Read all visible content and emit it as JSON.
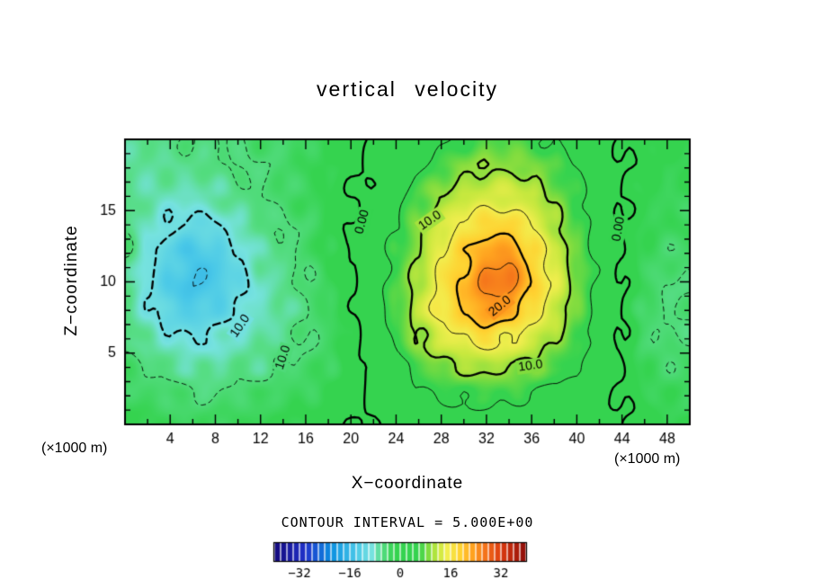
{
  "chart_data": {
    "type": "heatmap",
    "title": "vertical velocity",
    "xlabel": "X−coordinate",
    "ylabel": "Z−coordinate",
    "unit_label_left": "(×1000 m)",
    "unit_label_right": "(×1000 m)",
    "contour_interval_text": "CONTOUR INTERVAL = 5.000E+00",
    "contour_interval": 5.0,
    "xlim": [
      0,
      50
    ],
    "zlim": [
      0,
      20
    ],
    "x_ticks": [
      4,
      8,
      12,
      16,
      20,
      24,
      28,
      32,
      36,
      40,
      44,
      48
    ],
    "x_tick_minor_step": 2,
    "z_ticks": [
      5,
      10,
      15
    ],
    "z_tick_minor_step": 1,
    "grid_x": [
      0,
      2,
      4,
      6,
      8,
      10,
      12,
      14,
      16,
      18,
      20,
      22,
      24,
      26,
      28,
      30,
      32,
      34,
      36,
      38,
      40,
      42,
      44,
      46,
      48,
      50
    ],
    "grid_z": [
      0,
      2,
      4,
      6,
      8,
      10,
      12,
      14,
      16,
      18,
      20
    ],
    "values": [
      [
        -2,
        -2,
        -3,
        -3,
        -3,
        -3,
        -2,
        -2,
        -2,
        -1,
        0,
        0,
        1,
        2,
        3,
        3,
        3,
        3,
        3,
        2,
        2,
        1,
        0,
        -1,
        -2,
        -2
      ],
      [
        -3,
        -4,
        -4,
        -5,
        -5,
        -4,
        -4,
        -3,
        -3,
        -2,
        -1,
        0,
        2,
        4,
        5,
        6,
        6,
        6,
        5,
        4,
        3,
        1,
        0,
        -2,
        -3,
        -3
      ],
      [
        -4,
        -5,
        -6,
        -7,
        -7,
        -6,
        -6,
        -5,
        -4,
        -3,
        -1,
        1,
        4,
        7,
        9,
        10,
        11,
        10,
        9,
        7,
        5,
        2,
        0,
        -3,
        -4,
        -4
      ],
      [
        -5,
        -7,
        -9,
        -10,
        -9,
        -8,
        -7,
        -6,
        -5,
        -4,
        -1,
        2,
        6,
        10,
        13,
        15,
        17,
        15,
        13,
        10,
        7,
        3,
        0,
        -4,
        -5,
        -5
      ],
      [
        -6,
        -9,
        -12,
        -13,
        -12,
        -10,
        -8,
        -7,
        -5,
        -3,
        -1,
        3,
        7,
        12,
        16,
        20,
        24,
        22,
        17,
        13,
        8,
        4,
        0,
        -4,
        -5,
        -5
      ],
      [
        -6,
        -10,
        -13,
        -15,
        -14,
        -11,
        -8,
        -6,
        -5,
        -3,
        0,
        3,
        7,
        11,
        16,
        21,
        26,
        27,
        20,
        14,
        9,
        4,
        0,
        -3,
        -5,
        -5
      ],
      [
        -5,
        -9,
        -12,
        -14,
        -13,
        -10,
        -7,
        -6,
        -4,
        -2,
        0,
        2,
        6,
        10,
        15,
        19,
        23,
        24,
        18,
        13,
        8,
        4,
        0,
        -3,
        -4,
        -4
      ],
      [
        -5,
        -8,
        -10,
        -11,
        -10,
        -8,
        -6,
        -5,
        -4,
        -2,
        0,
        2,
        5,
        9,
        13,
        16,
        18,
        18,
        15,
        11,
        7,
        3,
        0,
        -2,
        -3,
        -3
      ],
      [
        -6,
        -7,
        -8,
        -8,
        -7,
        -6,
        -5,
        -4,
        -3,
        -2,
        0,
        1,
        4,
        7,
        10,
        12,
        13,
        13,
        12,
        9,
        6,
        3,
        0,
        -2,
        -3,
        -3
      ],
      [
        -7,
        -7,
        -6,
        -6,
        -6,
        -5,
        -5,
        -4,
        -3,
        -2,
        -1,
        1,
        3,
        5,
        7,
        9,
        10,
        10,
        9,
        7,
        5,
        2,
        0,
        -1,
        -2,
        -2
      ],
      [
        -6,
        -6,
        -6,
        -5,
        -5,
        -5,
        -4,
        -4,
        -3,
        -2,
        -1,
        0,
        2,
        3,
        4,
        6,
        7,
        7,
        6,
        5,
        4,
        2,
        0,
        -1,
        -2,
        -2
      ]
    ],
    "contour_levels": [
      -15,
      -10,
      -5,
      0,
      5,
      10,
      15,
      20,
      25
    ],
    "contour_labels": [
      {
        "text": "0.00",
        "x": 21.0,
        "z": 14.2,
        "rot": -75
      },
      {
        "text": "10.0",
        "x": 27.0,
        "z": 14.3,
        "rot": -35
      },
      {
        "text": "20.0",
        "x": 33.2,
        "z": 8.3,
        "rot": -40
      },
      {
        "text": "10.0",
        "x": 35.9,
        "z": 4.1,
        "rot": -8
      },
      {
        "text": "0.00",
        "x": 43.7,
        "z": 13.7,
        "rot": -80
      },
      {
        "text": "10.0",
        "x": 10.2,
        "z": 6.9,
        "rot": -55
      },
      {
        "text": "10.0",
        "x": 14.0,
        "z": 4.7,
        "rot": -72
      }
    ],
    "colormap": [
      {
        "v": -40,
        "c": "#14087a"
      },
      {
        "v": -30,
        "c": "#2133cc"
      },
      {
        "v": -22,
        "c": "#0b8fe0"
      },
      {
        "v": -14,
        "c": "#49c8e8"
      },
      {
        "v": -9,
        "c": "#76e2df"
      },
      {
        "v": -6,
        "c": "#57dd86"
      },
      {
        "v": -2,
        "c": "#35d34f"
      },
      {
        "v": 6,
        "c": "#35d34f"
      },
      {
        "v": 9,
        "c": "#7fdc3f"
      },
      {
        "v": 12,
        "c": "#c6e83e"
      },
      {
        "v": 15,
        "c": "#f2ee4e"
      },
      {
        "v": 19,
        "c": "#ffd231"
      },
      {
        "v": 23,
        "c": "#ffa21f"
      },
      {
        "v": 27,
        "c": "#f4731b"
      },
      {
        "v": 32,
        "c": "#dd3b10"
      },
      {
        "v": 40,
        "c": "#8c0b08"
      }
    ],
    "colorbar": {
      "min": -40,
      "max": 40,
      "cells": 40,
      "ticks": [
        {
          "v": -32,
          "label": "−32"
        },
        {
          "v": -16,
          "label": "−16"
        },
        {
          "v": 0,
          "label": "0"
        },
        {
          "v": 16,
          "label": "16"
        },
        {
          "v": 32,
          "label": "32"
        }
      ]
    }
  }
}
